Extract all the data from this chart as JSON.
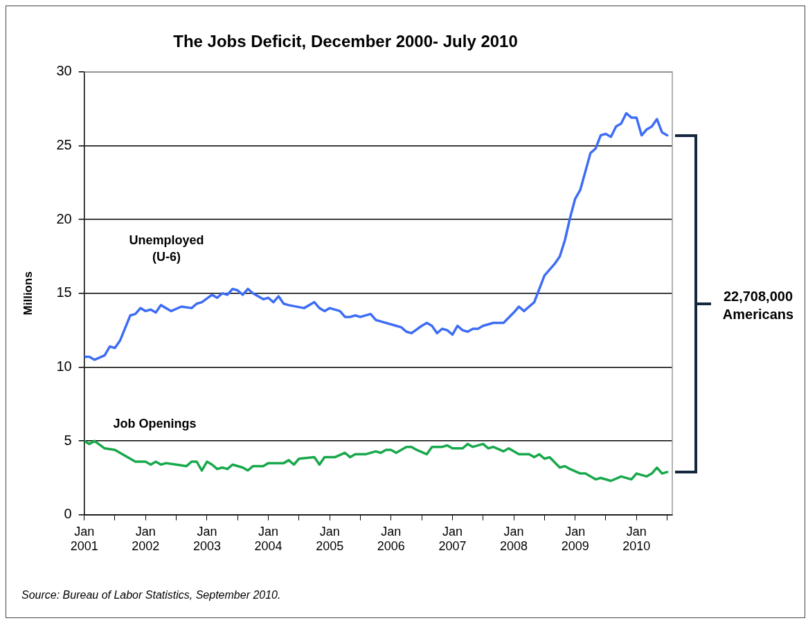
{
  "chart_data": {
    "type": "line",
    "title": "The Jobs Deficit, December 2000- July 2010",
    "ylabel": "Millions",
    "xlim": [
      "2001-01",
      "2010-08"
    ],
    "xticks": [
      {
        "value": "2001-01",
        "label": "Jan 2001"
      },
      {
        "value": "2001-07",
        "label": null
      },
      {
        "value": "2002-01",
        "label": "Jan 2002"
      },
      {
        "value": "2002-07",
        "label": null
      },
      {
        "value": "2003-01",
        "label": "Jan 2003"
      },
      {
        "value": "2003-07",
        "label": null
      },
      {
        "value": "2004-01",
        "label": "Jan 2004"
      },
      {
        "value": "2004-07",
        "label": null
      },
      {
        "value": "2005-01",
        "label": "Jan 2005"
      },
      {
        "value": "2005-07",
        "label": null
      },
      {
        "value": "2006-01",
        "label": "Jan 2006"
      },
      {
        "value": "2006-07",
        "label": null
      },
      {
        "value": "2007-01",
        "label": "Jan 2007"
      },
      {
        "value": "2007-07",
        "label": null
      },
      {
        "value": "2008-01",
        "label": "Jan 2008"
      },
      {
        "value": "2008-07",
        "label": null
      },
      {
        "value": "2009-01",
        "label": "Jan 2009"
      },
      {
        "value": "2009-07",
        "label": null
      },
      {
        "value": "2010-01",
        "label": "Jan 2010"
      },
      {
        "value": "2010-07",
        "label": null
      }
    ],
    "ylim": [
      0,
      30
    ],
    "yticks": [
      0,
      5,
      10,
      15,
      20,
      25,
      30
    ],
    "grid": "y",
    "legend": false,
    "marker": "none",
    "line_style": "solid",
    "series": [
      {
        "name": "Unemployed (U-6)",
        "color": "#3d6cf5",
        "x": [
          "2001-01",
          "2001-02",
          "2001-03",
          "2001-05",
          "2001-06",
          "2001-07",
          "2001-08",
          "2001-10",
          "2001-11",
          "2001-12",
          "2002-01",
          "2002-02",
          "2002-03",
          "2002-04",
          "2002-06",
          "2002-08",
          "2002-10",
          "2002-11",
          "2002-12",
          "2003-02",
          "2003-03",
          "2003-04",
          "2003-05",
          "2003-06",
          "2003-07",
          "2003-08",
          "2003-09",
          "2003-10",
          "2003-12",
          "2004-01",
          "2004-02",
          "2004-03",
          "2004-04",
          "2004-05",
          "2004-08",
          "2004-10",
          "2004-11",
          "2004-12",
          "2005-01",
          "2005-03",
          "2005-04",
          "2005-05",
          "2005-06",
          "2005-07",
          "2005-09",
          "2005-10",
          "2005-11",
          "2006-02",
          "2006-03",
          "2006-04",
          "2006-05",
          "2006-07",
          "2006-08",
          "2006-09",
          "2006-10",
          "2006-11",
          "2006-12",
          "2007-01",
          "2007-02",
          "2007-03",
          "2007-04",
          "2007-05",
          "2007-06",
          "2007-07",
          "2007-09",
          "2007-11",
          "2008-01",
          "2008-02",
          "2008-03",
          "2008-04",
          "2008-05",
          "2008-06",
          "2008-07",
          "2008-09",
          "2008-10",
          "2008-11",
          "2008-12",
          "2009-01",
          "2009-02",
          "2009-04",
          "2009-05",
          "2009-06",
          "2009-07",
          "2009-08",
          "2009-09",
          "2009-10",
          "2009-11",
          "2009-12",
          "2010-01",
          "2010-02",
          "2010-03",
          "2010-04",
          "2010-05",
          "2010-06",
          "2010-07"
        ],
        "values": [
          10.7,
          10.7,
          10.5,
          10.8,
          11.4,
          11.3,
          11.8,
          13.5,
          13.6,
          14.0,
          13.8,
          13.9,
          13.7,
          14.2,
          13.8,
          14.1,
          14.0,
          14.3,
          14.4,
          14.9,
          14.7,
          15.0,
          14.9,
          15.3,
          15.2,
          14.9,
          15.3,
          15.0,
          14.6,
          14.7,
          14.4,
          14.8,
          14.3,
          14.2,
          14.0,
          14.4,
          14.0,
          13.8,
          14.0,
          13.8,
          13.4,
          13.4,
          13.5,
          13.4,
          13.6,
          13.2,
          13.1,
          12.8,
          12.7,
          12.4,
          12.3,
          12.8,
          13.0,
          12.8,
          12.3,
          12.6,
          12.5,
          12.2,
          12.8,
          12.5,
          12.4,
          12.6,
          12.6,
          12.8,
          13.0,
          13.0,
          13.7,
          14.1,
          13.8,
          14.1,
          14.4,
          15.3,
          16.2,
          17.0,
          17.5,
          18.6,
          20.1,
          21.4,
          22.0,
          24.5,
          24.8,
          25.7,
          25.8,
          25.6,
          26.3,
          26.5,
          27.2,
          26.9,
          26.9,
          25.7,
          26.1,
          26.3,
          26.8,
          25.9,
          25.7
        ]
      },
      {
        "name": "Job Openings",
        "color": "#17a84b",
        "x": [
          "2001-01",
          "2001-02",
          "2001-03",
          "2001-05",
          "2001-07",
          "2001-08",
          "2001-11",
          "2002-01",
          "2002-02",
          "2002-03",
          "2002-04",
          "2002-05",
          "2002-07",
          "2002-09",
          "2002-10",
          "2002-11",
          "2002-12",
          "2003-01",
          "2003-02",
          "2003-03",
          "2003-04",
          "2003-05",
          "2003-06",
          "2003-08",
          "2003-09",
          "2003-10",
          "2003-12",
          "2004-01",
          "2004-04",
          "2004-05",
          "2004-06",
          "2004-07",
          "2004-10",
          "2004-11",
          "2004-12",
          "2005-02",
          "2005-04",
          "2005-05",
          "2005-06",
          "2005-08",
          "2005-10",
          "2005-11",
          "2005-12",
          "2006-01",
          "2006-02",
          "2006-04",
          "2006-05",
          "2006-06",
          "2006-08",
          "2006-09",
          "2006-11",
          "2006-12",
          "2007-01",
          "2007-03",
          "2007-04",
          "2007-05",
          "2007-07",
          "2007-08",
          "2007-09",
          "2007-11",
          "2007-12",
          "2008-02",
          "2008-04",
          "2008-05",
          "2008-06",
          "2008-07",
          "2008-08",
          "2008-10",
          "2008-11",
          "2008-12",
          "2009-02",
          "2009-03",
          "2009-05",
          "2009-06",
          "2009-08",
          "2009-10",
          "2009-12",
          "2010-01",
          "2010-03",
          "2010-04",
          "2010-05",
          "2010-06",
          "2010-07"
        ],
        "values": [
          5.0,
          4.8,
          5.0,
          4.5,
          4.4,
          4.2,
          3.6,
          3.6,
          3.4,
          3.6,
          3.4,
          3.5,
          3.4,
          3.3,
          3.6,
          3.6,
          3.0,
          3.6,
          3.4,
          3.1,
          3.2,
          3.1,
          3.4,
          3.2,
          3.0,
          3.3,
          3.3,
          3.5,
          3.5,
          3.7,
          3.4,
          3.8,
          3.9,
          3.4,
          3.9,
          3.9,
          4.2,
          3.9,
          4.1,
          4.1,
          4.3,
          4.2,
          4.4,
          4.4,
          4.2,
          4.6,
          4.6,
          4.4,
          4.1,
          4.6,
          4.6,
          4.7,
          4.5,
          4.5,
          4.8,
          4.6,
          4.8,
          4.5,
          4.6,
          4.3,
          4.5,
          4.1,
          4.1,
          3.9,
          4.1,
          3.8,
          3.9,
          3.2,
          3.3,
          3.1,
          2.8,
          2.8,
          2.4,
          2.5,
          2.3,
          2.6,
          2.4,
          2.8,
          2.6,
          2.8,
          3.2,
          2.8,
          2.9
        ]
      }
    ],
    "annotations": [
      "22,708,000 Americans",
      "Source: Bureau of Labor Statistics, September 2010."
    ]
  }
}
